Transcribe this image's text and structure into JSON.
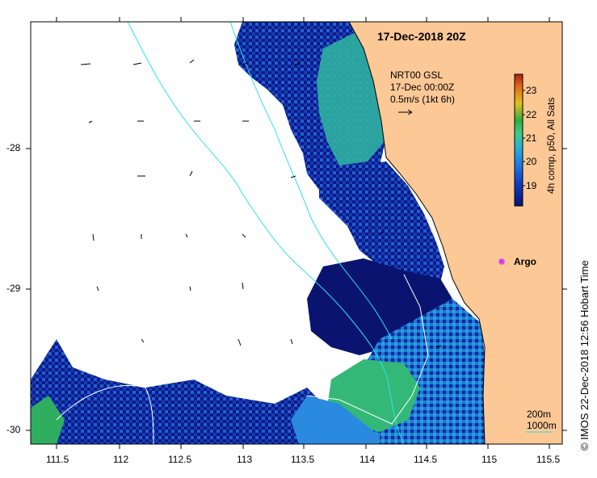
{
  "map": {
    "title": "17-Dec-2018 20Z",
    "x_ticks": [
      "111.5",
      "112",
      "112.5",
      "113",
      "113.5",
      "114",
      "114.5",
      "115",
      "115.5"
    ],
    "y_ticks": [
      "-28",
      "-29",
      "-30"
    ],
    "lon_range": [
      111.3,
      115.6
    ],
    "lat_range": [
      -30.1,
      -27.15
    ]
  },
  "velocity_key": {
    "line1": "NRT00 GSL",
    "line2": "17-Dec 00:00Z",
    "line3": "0.5m/s (1kt 6h)"
  },
  "colorbar": {
    "ticks": [
      "23",
      "22",
      "21",
      "20",
      "19"
    ],
    "label": "4h comp, p50, All Sats",
    "colors": [
      "#08117a",
      "#1040c8",
      "#1e7fe0",
      "#2bb0d0",
      "#3ecb8a",
      "#2fae3e",
      "#e0c020",
      "#e07018",
      "#b02010"
    ]
  },
  "argo": {
    "label": "Argo",
    "color": "#cc33ff"
  },
  "scale": {
    "label1": "200m",
    "label2": "1000m"
  },
  "credit": "© IMOS 22-Dec-2018 12:56 Hobart Time",
  "colors": {
    "land": "#fcc896",
    "deep_blue": "#08117a",
    "mid_blue": "#1e7fe0",
    "green": "#33b870",
    "cyan_line": "#30e0e8"
  }
}
